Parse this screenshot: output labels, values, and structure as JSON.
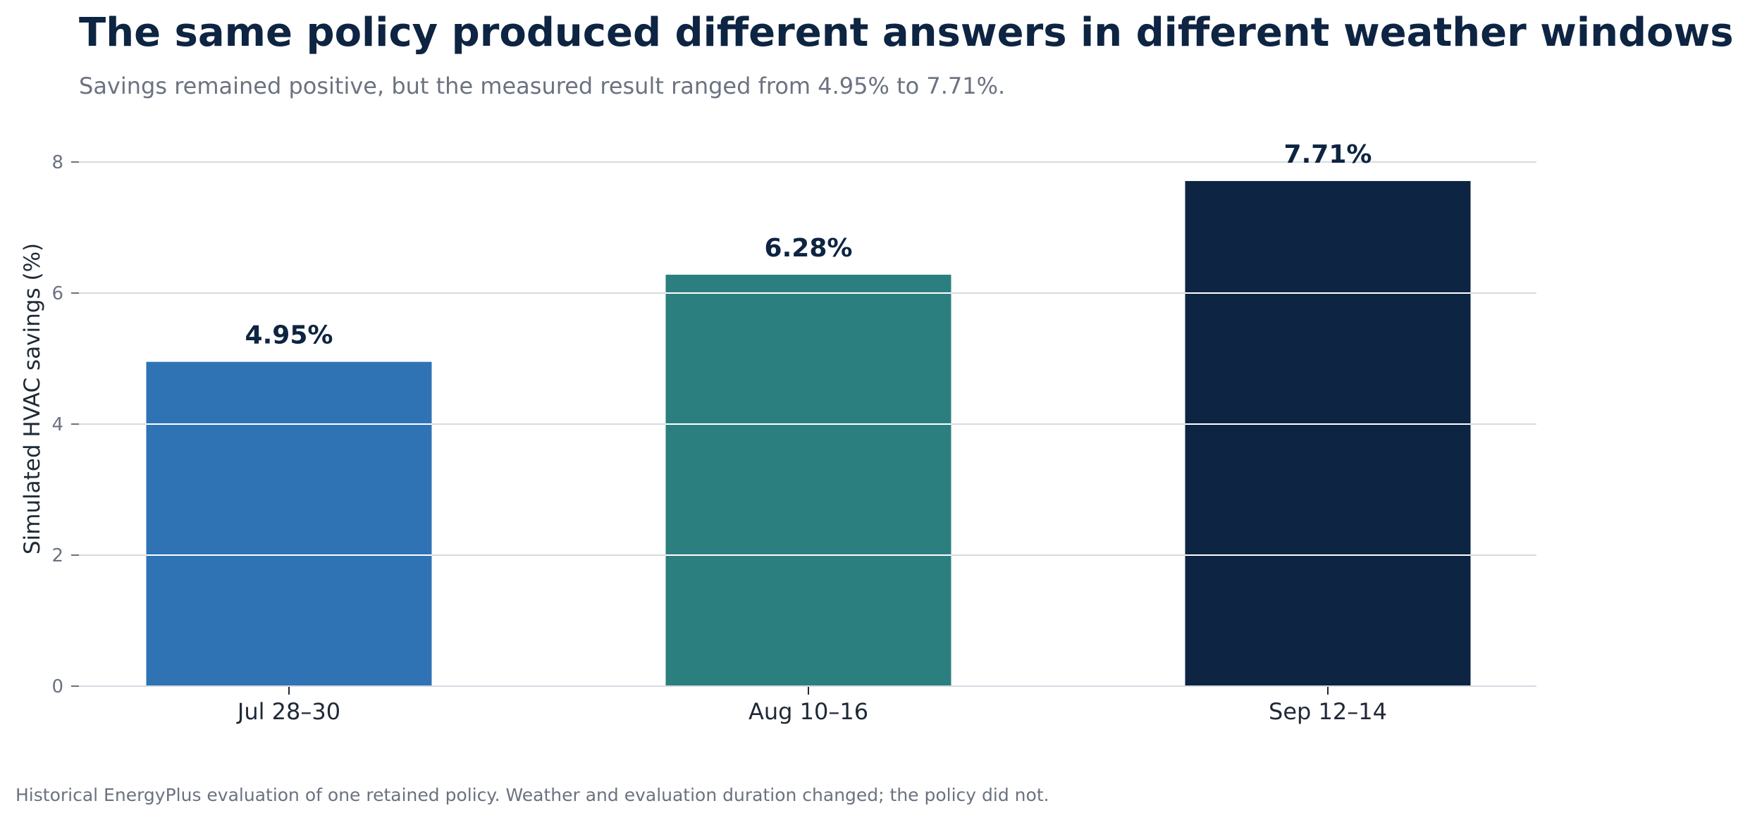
{
  "chart_data": {
    "type": "bar",
    "title": "The same policy produced different answers in different weather windows",
    "subtitle": "Savings remained positive, but the measured result ranged from 4.95% to 7.71%.",
    "xlabel": "",
    "ylabel": "Simulated HVAC savings (%)",
    "categories": [
      "Jul 28–30",
      "Aug 10–16",
      "Sep 12–14"
    ],
    "values": [
      4.95,
      6.28,
      7.71
    ],
    "data_labels": [
      "4.95%",
      "6.28%",
      "7.71%"
    ],
    "colors": [
      "#2f73b5",
      "#2b807f",
      "#0d2442"
    ],
    "ylim": [
      0,
      8
    ],
    "yticks": [
      0,
      2,
      4,
      6,
      8
    ],
    "ytick_labels": [
      "0",
      "2",
      "4",
      "6",
      "8"
    ],
    "grid": true,
    "footnote": "Historical EnergyPlus evaluation of one retained policy. Weather and evaluation duration changed; the policy did not."
  }
}
